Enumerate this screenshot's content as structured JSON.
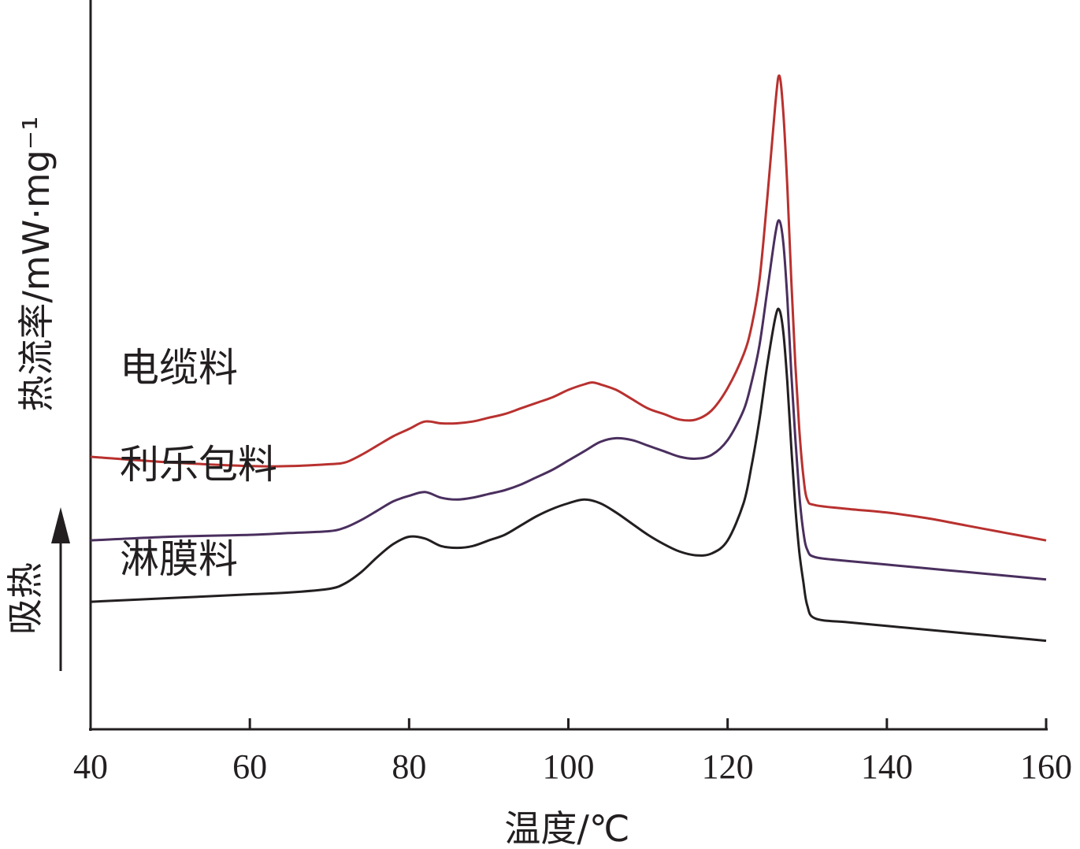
{
  "chart_data": {
    "type": "line",
    "xlabel": "温度/℃",
    "ylabel": "热流率/mW·mg⁻¹",
    "direction_label": "吸热",
    "xlim": [
      40,
      160
    ],
    "x_ticks": [
      "40",
      "60",
      "80",
      "100",
      "120",
      "140",
      "160"
    ],
    "y_ticks": [],
    "grid": false,
    "legend": "inline labels at left of curves",
    "series": [
      {
        "name": "电缆料",
        "color": "#b8312f",
        "x": [
          40,
          50,
          60,
          65,
          70,
          72,
          74,
          76,
          78,
          80,
          82,
          84,
          86,
          88,
          90,
          92,
          94,
          96,
          98,
          100,
          102,
          103,
          104,
          106,
          108,
          110,
          112,
          114,
          116,
          118,
          120,
          122,
          123,
          124,
          125,
          126,
          126.5,
          127,
          127.5,
          128,
          128.5,
          129,
          129.5,
          130,
          131,
          135,
          140,
          145,
          150,
          155,
          160
        ],
        "y": [
          7.5,
          7.2,
          7.0,
          7.0,
          7.1,
          7.2,
          7.6,
          8.1,
          8.6,
          9.0,
          9.4,
          9.3,
          9.3,
          9.4,
          9.6,
          9.8,
          10.1,
          10.4,
          10.7,
          11.1,
          11.4,
          11.5,
          11.4,
          11.1,
          10.6,
          10.1,
          9.8,
          9.5,
          9.5,
          10.0,
          11.2,
          13.0,
          14.5,
          17.0,
          21.5,
          26.5,
          28.0,
          26.0,
          22.0,
          17.0,
          12.5,
          9.0,
          6.5,
          5.2,
          4.9,
          4.7,
          4.5,
          4.2,
          3.8,
          3.4,
          3.0
        ]
      },
      {
        "name": "利乐包料",
        "color": "#4a2f5e",
        "x": [
          40,
          50,
          60,
          65,
          70,
          72,
          74,
          76,
          78,
          80,
          82,
          84,
          86,
          88,
          90,
          92,
          94,
          96,
          98,
          100,
          102,
          104,
          106,
          108,
          110,
          112,
          114,
          116,
          118,
          120,
          122,
          123,
          124,
          125,
          126,
          126.5,
          127,
          127.5,
          128,
          128.5,
          129,
          129.5,
          130,
          131,
          135,
          140,
          145,
          150,
          155,
          160
        ],
        "y": [
          3.0,
          3.2,
          3.3,
          3.4,
          3.5,
          3.7,
          4.1,
          4.6,
          5.1,
          5.4,
          5.6,
          5.3,
          5.2,
          5.3,
          5.5,
          5.7,
          6.0,
          6.4,
          6.8,
          7.3,
          7.8,
          8.3,
          8.5,
          8.4,
          8.1,
          7.8,
          7.5,
          7.4,
          7.6,
          8.4,
          10.0,
          11.5,
          13.5,
          16.5,
          19.5,
          20.2,
          19.0,
          16.0,
          12.0,
          8.5,
          5.5,
          3.5,
          2.5,
          2.1,
          1.9,
          1.7,
          1.5,
          1.3,
          1.1,
          0.9
        ]
      },
      {
        "name": "淋膜料",
        "color": "#231f20",
        "x": [
          40,
          50,
          60,
          65,
          70,
          72,
          74,
          76,
          78,
          80,
          82,
          84,
          86,
          88,
          90,
          92,
          94,
          96,
          98,
          100,
          102,
          104,
          106,
          108,
          110,
          112,
          114,
          116,
          118,
          120,
          122,
          123,
          124,
          125,
          126,
          126.5,
          127,
          127.5,
          128,
          128.5,
          129,
          129.5,
          130,
          131,
          135,
          140,
          145,
          150,
          155,
          160
        ],
        "y": [
          -0.3,
          -0.1,
          0.1,
          0.2,
          0.4,
          0.7,
          1.3,
          2.1,
          2.8,
          3.2,
          3.1,
          2.7,
          2.6,
          2.7,
          3.0,
          3.3,
          3.8,
          4.3,
          4.7,
          5.0,
          5.2,
          5.0,
          4.5,
          3.9,
          3.3,
          2.8,
          2.4,
          2.2,
          2.3,
          3.0,
          5.0,
          7.0,
          9.5,
          12.5,
          15.0,
          15.4,
          14.2,
          11.5,
          8.0,
          4.8,
          2.4,
          0.8,
          -0.5,
          -1.2,
          -1.4,
          -1.6,
          -1.8,
          -2.0,
          -2.2,
          -2.4
        ]
      }
    ]
  }
}
